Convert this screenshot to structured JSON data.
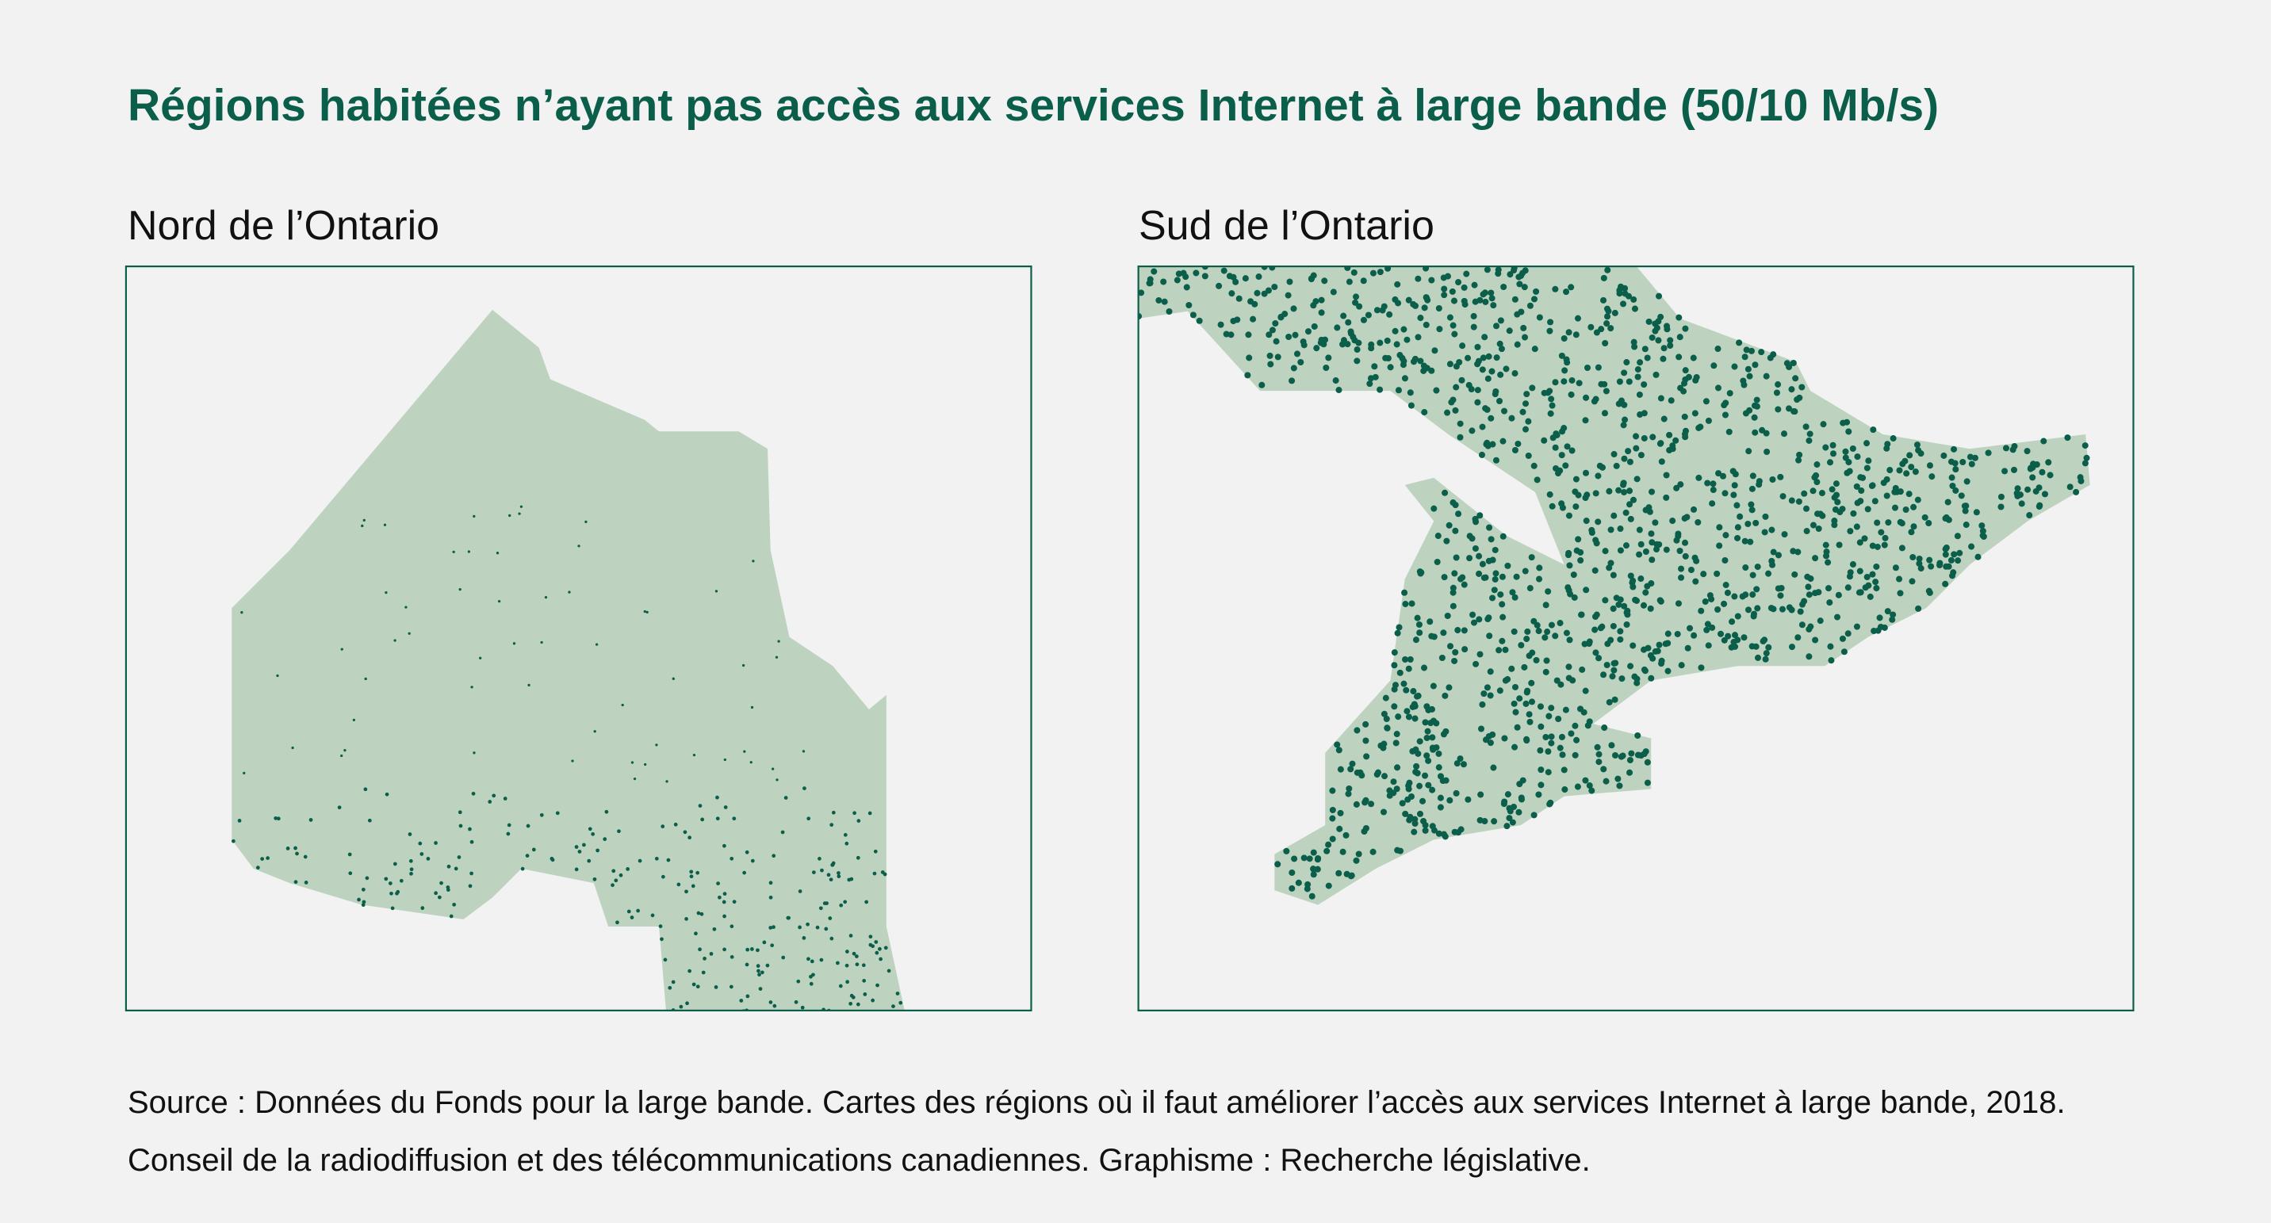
{
  "title": "Régions habitées n’ayant pas accès aux services Internet à large bande (50/10 Mb/s)",
  "panels": [
    {
      "title": "Nord de l’Ontario"
    },
    {
      "title": "Sud de l’Ontario"
    }
  ],
  "source": "Source : Données du Fonds pour la large bande. Cartes des régions où il faut améliorer l’accès aux services Internet à large bande, 2018. Conseil de la radiodiffusion et des télécommunications canadiennes. Graphisme : Recherche législative."
}
